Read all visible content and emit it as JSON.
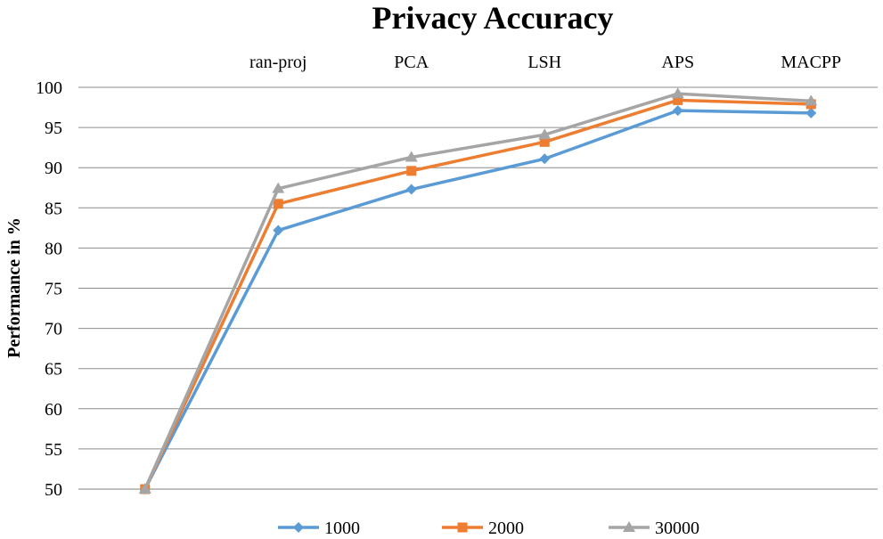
{
  "chart_data": {
    "type": "line",
    "title": "Privacy Accuracy",
    "ylabel": "Performance in %",
    "xlabel": "",
    "categories": [
      "",
      "ran-proj",
      "PCA",
      "LSH",
      "APS",
      "MACPP"
    ],
    "ylim": [
      50,
      100
    ],
    "yticks": [
      50,
      55,
      60,
      65,
      70,
      75,
      80,
      85,
      90,
      95,
      100
    ],
    "grid": true,
    "legend_position": "bottom",
    "series": [
      {
        "name": "1000",
        "color": "#5b9bd5",
        "marker": "diamond",
        "values": [
          50,
          82.2,
          87.3,
          91.1,
          97.1,
          96.8
        ]
      },
      {
        "name": "2000",
        "color": "#ed7d31",
        "marker": "square",
        "values": [
          50,
          85.5,
          89.6,
          93.2,
          98.4,
          97.9
        ]
      },
      {
        "name": "30000",
        "color": "#a5a5a5",
        "marker": "triangle",
        "values": [
          50,
          87.4,
          91.3,
          94.1,
          99.2,
          98.3
        ]
      }
    ]
  }
}
